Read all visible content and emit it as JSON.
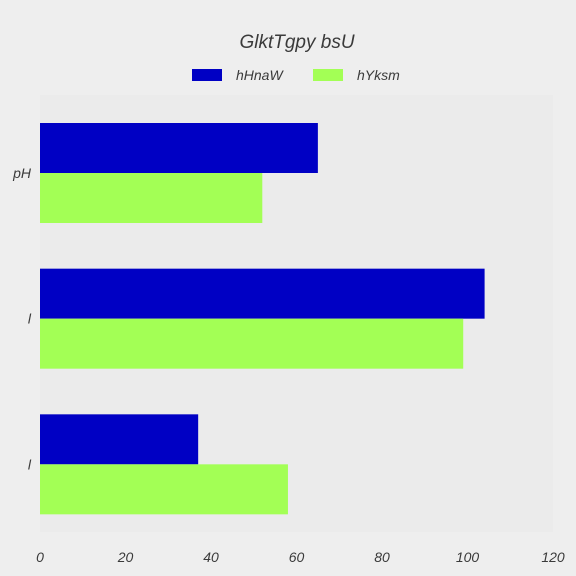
{
  "chart_data": {
    "type": "bar",
    "orientation": "horizontal",
    "title": "GlktTgpy bsU",
    "xlabel": "",
    "ylabel": "",
    "categories": [
      "pH",
      "l",
      "l"
    ],
    "series": [
      {
        "name": "hHnaW",
        "values": [
          65,
          104,
          37
        ],
        "color": "#0000c4"
      },
      {
        "name": "hYksm",
        "values": [
          52,
          99,
          58
        ],
        "color": "#a3ff55"
      }
    ],
    "xlim": [
      0,
      120
    ],
    "xticks": [
      "0",
      "20",
      "40",
      "60",
      "80",
      "100",
      "120"
    ],
    "grid": false,
    "legend_position": "top-center",
    "colors": {
      "background": "#eeeeee",
      "plot_area": "#ebebeb",
      "text": "#3a3a3a"
    }
  }
}
